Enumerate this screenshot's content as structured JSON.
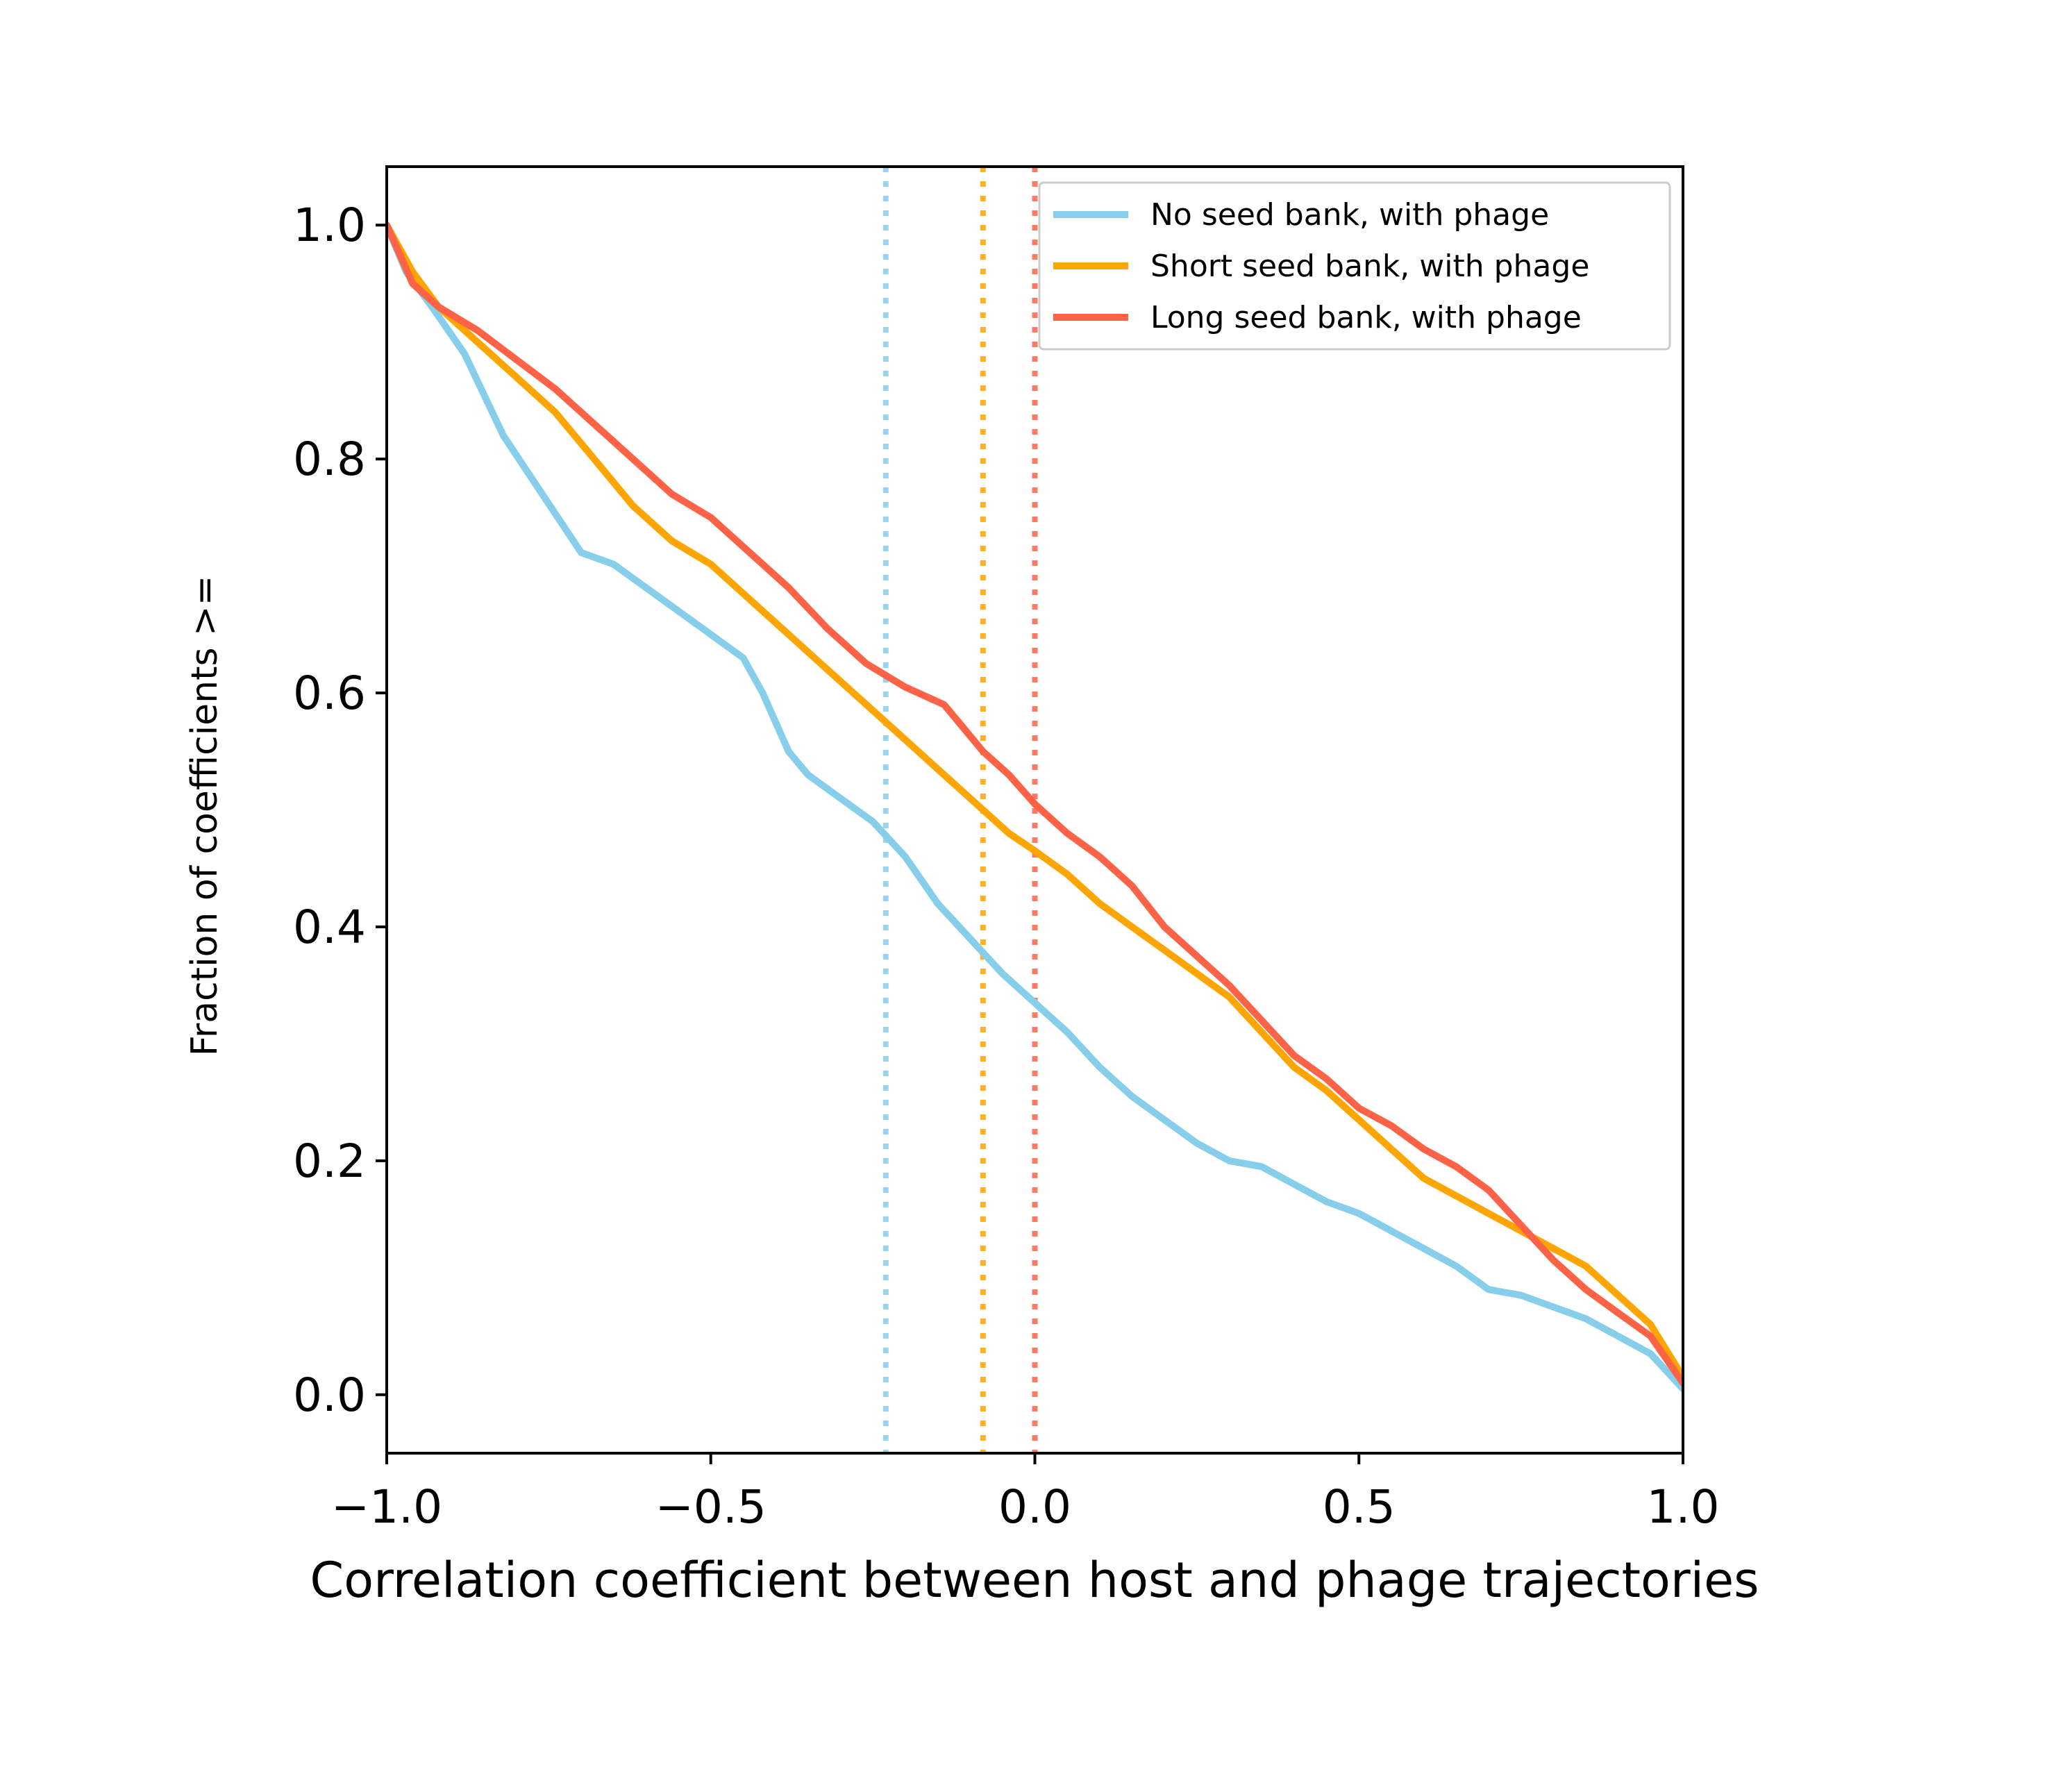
{
  "chart_data": {
    "type": "line",
    "title": "",
    "xlabel": "Correlation coefficient between host and phage trajectories",
    "ylabel": "Fraction of coefficients >=",
    "xlim": [
      -1.0,
      1.0
    ],
    "ylim": [
      -0.05,
      1.05
    ],
    "x_ticks": [
      -1.0,
      -0.5,
      0.0,
      0.5,
      1.0
    ],
    "x_tick_labels": [
      "−1.0",
      "−0.5",
      "0.0",
      "0.5",
      "1.0"
    ],
    "y_ticks": [
      0.0,
      0.2,
      0.4,
      0.6,
      0.8,
      1.0
    ],
    "y_tick_labels": [
      "0.0",
      "0.2",
      "0.4",
      "0.6",
      "0.8",
      "1.0"
    ],
    "grid": false,
    "legend_position": "top-right",
    "series": [
      {
        "name": "No seed bank, with phage",
        "color": "#87CEEB",
        "median": -0.23,
        "x": [
          -1.0,
          -0.97,
          -0.93,
          -0.88,
          -0.82,
          -0.76,
          -0.7,
          -0.65,
          -0.6,
          -0.55,
          -0.5,
          -0.45,
          -0.42,
          -0.38,
          -0.35,
          -0.3,
          -0.25,
          -0.2,
          -0.15,
          -0.1,
          -0.05,
          0.0,
          0.05,
          0.1,
          0.15,
          0.2,
          0.25,
          0.3,
          0.35,
          0.4,
          0.45,
          0.5,
          0.55,
          0.6,
          0.65,
          0.7,
          0.75,
          0.8,
          0.85,
          0.9,
          0.95,
          1.0
        ],
        "y": [
          1.0,
          0.96,
          0.93,
          0.89,
          0.82,
          0.77,
          0.72,
          0.71,
          0.69,
          0.67,
          0.65,
          0.63,
          0.6,
          0.55,
          0.53,
          0.51,
          0.49,
          0.46,
          0.42,
          0.39,
          0.36,
          0.335,
          0.31,
          0.28,
          0.255,
          0.235,
          0.215,
          0.2,
          0.195,
          0.18,
          0.165,
          0.155,
          0.14,
          0.125,
          0.11,
          0.09,
          0.085,
          0.075,
          0.065,
          0.05,
          0.035,
          0.005
        ]
      },
      {
        "name": "Short seed bank, with phage",
        "color": "#FFA500",
        "median": -0.08,
        "x": [
          -1.0,
          -0.96,
          -0.92,
          -0.86,
          -0.8,
          -0.74,
          -0.68,
          -0.62,
          -0.56,
          -0.5,
          -0.44,
          -0.38,
          -0.32,
          -0.26,
          -0.2,
          -0.14,
          -0.08,
          -0.04,
          0.0,
          0.05,
          0.1,
          0.15,
          0.2,
          0.25,
          0.3,
          0.35,
          0.4,
          0.45,
          0.5,
          0.55,
          0.6,
          0.65,
          0.7,
          0.75,
          0.8,
          0.85,
          0.9,
          0.95,
          1.0
        ],
        "y": [
          1.0,
          0.96,
          0.93,
          0.9,
          0.87,
          0.84,
          0.8,
          0.76,
          0.73,
          0.71,
          0.68,
          0.65,
          0.62,
          0.59,
          0.56,
          0.53,
          0.5,
          0.48,
          0.465,
          0.445,
          0.42,
          0.4,
          0.38,
          0.36,
          0.34,
          0.31,
          0.28,
          0.26,
          0.235,
          0.21,
          0.185,
          0.17,
          0.155,
          0.14,
          0.125,
          0.11,
          0.085,
          0.06,
          0.015
        ]
      },
      {
        "name": "Long seed bank, with phage",
        "color": "#FF6347",
        "median": 0.0,
        "x": [
          -1.0,
          -0.96,
          -0.92,
          -0.86,
          -0.8,
          -0.74,
          -0.68,
          -0.62,
          -0.56,
          -0.5,
          -0.44,
          -0.38,
          -0.32,
          -0.26,
          -0.2,
          -0.14,
          -0.08,
          -0.04,
          0.0,
          0.05,
          0.1,
          0.15,
          0.2,
          0.25,
          0.3,
          0.35,
          0.4,
          0.45,
          0.5,
          0.55,
          0.6,
          0.65,
          0.7,
          0.75,
          0.8,
          0.85,
          0.9,
          0.95,
          1.0
        ],
        "y": [
          1.0,
          0.95,
          0.93,
          0.91,
          0.885,
          0.86,
          0.83,
          0.8,
          0.77,
          0.75,
          0.72,
          0.69,
          0.655,
          0.625,
          0.605,
          0.59,
          0.55,
          0.53,
          0.505,
          0.48,
          0.46,
          0.435,
          0.4,
          0.375,
          0.35,
          0.32,
          0.29,
          0.27,
          0.245,
          0.23,
          0.21,
          0.195,
          0.175,
          0.145,
          0.115,
          0.09,
          0.07,
          0.05,
          0.01
        ]
      }
    ]
  }
}
